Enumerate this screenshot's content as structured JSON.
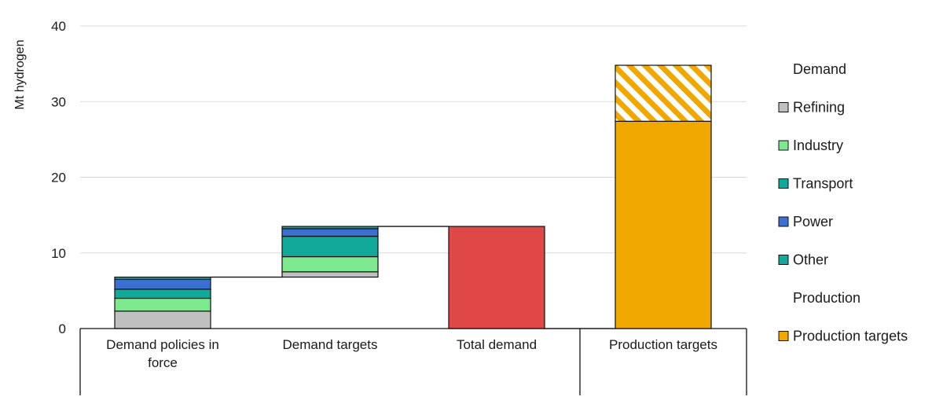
{
  "chart_data": {
    "type": "bar",
    "variant": "waterfall-stacked",
    "ylabel": "Mt hydrogen",
    "ylim": [
      0,
      40
    ],
    "yticks": [
      0,
      10,
      20,
      30,
      40
    ],
    "grid": true,
    "legend_position": "right",
    "categories": [
      "Demand policies in force",
      "Demand targets",
      "Total demand",
      "Production targets"
    ],
    "category_groups": [
      {
        "categories": [
          "Demand policies in force",
          "Demand targets",
          "Total demand"
        ]
      },
      {
        "categories": [
          "Production targets"
        ]
      }
    ],
    "legend_groups": [
      {
        "title": "Demand",
        "items": [
          {
            "label": "Refining",
            "color": "#c0c0c0",
            "pattern": "solid"
          },
          {
            "label": "Industry",
            "color": "#7ee88f",
            "pattern": "solid"
          },
          {
            "label": "Transport",
            "color": "#12a89a",
            "pattern": "solid"
          },
          {
            "label": "Power",
            "color": "#3d6fd0",
            "pattern": "solid"
          },
          {
            "label": "Other",
            "color": "#12a89a",
            "pattern": "solid"
          }
        ]
      },
      {
        "title": "Production",
        "items": [
          {
            "label": "Production targets",
            "color": "#f0a800",
            "pattern": "solid"
          }
        ]
      }
    ],
    "bars": [
      {
        "category": "Demand policies in force",
        "segments": [
          {
            "series": "Refining",
            "bottom": 0,
            "value": 2.3,
            "color": "#c0c0c0",
            "pattern": "solid"
          },
          {
            "series": "Industry",
            "bottom": 2.3,
            "value": 1.7,
            "color": "#7ee88f",
            "pattern": "solid"
          },
          {
            "series": "Transport",
            "bottom": 4.0,
            "value": 1.2,
            "color": "#12a89a",
            "pattern": "solid"
          },
          {
            "series": "Power",
            "bottom": 5.2,
            "value": 1.3,
            "color": "#3d6fd0",
            "pattern": "solid"
          },
          {
            "series": "Other",
            "bottom": 6.5,
            "value": 0.3,
            "color": "#12a89a",
            "pattern": "solid"
          }
        ]
      },
      {
        "category": "Demand targets",
        "segments": [
          {
            "series": "Refining",
            "bottom": 6.8,
            "value": 0.7,
            "color": "#c0c0c0",
            "pattern": "solid"
          },
          {
            "series": "Industry",
            "bottom": 7.5,
            "value": 2.0,
            "color": "#7ee88f",
            "pattern": "solid"
          },
          {
            "series": "Transport",
            "bottom": 9.5,
            "value": 2.7,
            "color": "#12a89a",
            "pattern": "solid"
          },
          {
            "series": "Power",
            "bottom": 12.2,
            "value": 1.0,
            "color": "#3d6fd0",
            "pattern": "solid"
          },
          {
            "series": "Other",
            "bottom": 13.2,
            "value": 0.3,
            "color": "#12a89a",
            "pattern": "solid"
          }
        ]
      },
      {
        "category": "Total demand",
        "segments": [
          {
            "series": "Total demand",
            "bottom": 0,
            "value": 13.5,
            "color": "#e04848",
            "pattern": "solid"
          }
        ]
      },
      {
        "category": "Production targets",
        "segments": [
          {
            "series": "Production targets",
            "bottom": 0,
            "value": 27.4,
            "color": "#f0a800",
            "pattern": "solid"
          },
          {
            "series": "Production targets",
            "bottom": 27.4,
            "value": 7.4,
            "color": "#f0a800",
            "pattern": "hatched"
          }
        ]
      }
    ],
    "connectors": [
      {
        "from": "Demand policies in force",
        "to": "Demand targets",
        "value": 6.8
      },
      {
        "from": "Demand targets",
        "to": "Total demand",
        "value": 13.5
      },
      {
        "from": "Total demand",
        "to": "Production targets",
        "value": 0
      }
    ]
  }
}
